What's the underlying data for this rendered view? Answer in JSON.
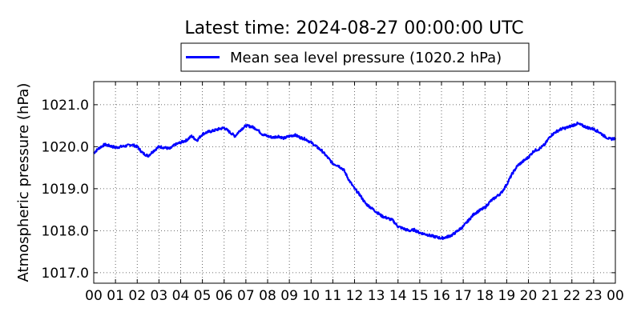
{
  "chart_data": {
    "type": "line",
    "title": "Latest time: 2024-08-27 00:00:00 UTC",
    "ylabel": "Atmospheric pressure (hPa)",
    "xlabel": "",
    "x_tick_labels": [
      "00",
      "01",
      "02",
      "03",
      "04",
      "05",
      "06",
      "07",
      "08",
      "09",
      "10",
      "11",
      "12",
      "13",
      "14",
      "15",
      "16",
      "17",
      "18",
      "19",
      "20",
      "21",
      "22",
      "23",
      "00"
    ],
    "y_tick_labels": [
      "1017.0",
      "1018.0",
      "1019.0",
      "1020.0",
      "1021.0"
    ],
    "y_ticks": [
      1017.0,
      1018.0,
      1019.0,
      1020.0,
      1021.0
    ],
    "xlim": [
      0,
      24
    ],
    "ylim": [
      1016.75,
      1021.55
    ],
    "grid": true,
    "legend_position": "top-center",
    "series": [
      {
        "name": "Mean sea level pressure (1020.2 hPa)",
        "color": "#0000ff",
        "x": [
          0.0,
          0.25,
          0.5,
          0.75,
          1.0,
          1.25,
          1.5,
          1.75,
          2.0,
          2.25,
          2.5,
          2.75,
          3.0,
          3.25,
          3.5,
          3.75,
          4.0,
          4.25,
          4.5,
          4.75,
          5.0,
          5.25,
          5.5,
          5.75,
          6.0,
          6.25,
          6.5,
          6.75,
          7.0,
          7.25,
          7.5,
          7.75,
          8.0,
          8.25,
          8.5,
          8.75,
          9.0,
          9.25,
          9.5,
          9.75,
          10.0,
          10.25,
          10.5,
          10.75,
          11.0,
          11.25,
          11.5,
          11.75,
          12.0,
          12.25,
          12.5,
          12.75,
          13.0,
          13.25,
          13.5,
          13.75,
          14.0,
          14.25,
          14.5,
          14.75,
          15.0,
          15.25,
          15.5,
          15.75,
          16.0,
          16.25,
          16.5,
          16.75,
          17.0,
          17.25,
          17.5,
          17.75,
          18.0,
          18.25,
          18.5,
          18.75,
          19.0,
          19.25,
          19.5,
          19.75,
          20.0,
          20.25,
          20.5,
          20.75,
          21.0,
          21.25,
          21.5,
          21.75,
          22.0,
          22.25,
          22.5,
          22.75,
          23.0,
          23.25,
          23.5,
          23.75,
          24.0
        ],
        "values": [
          1019.85,
          1019.97,
          1020.05,
          1020.02,
          1019.98,
          1020.0,
          1020.02,
          1020.05,
          1020.0,
          1019.85,
          1019.78,
          1019.9,
          1020.0,
          1019.98,
          1019.95,
          1020.05,
          1020.1,
          1020.15,
          1020.25,
          1020.15,
          1020.3,
          1020.35,
          1020.38,
          1020.42,
          1020.45,
          1020.35,
          1020.25,
          1020.4,
          1020.5,
          1020.48,
          1020.42,
          1020.3,
          1020.25,
          1020.22,
          1020.25,
          1020.2,
          1020.25,
          1020.28,
          1020.22,
          1020.18,
          1020.1,
          1020.0,
          1019.9,
          1019.75,
          1019.6,
          1019.55,
          1019.45,
          1019.2,
          1019.0,
          1018.85,
          1018.65,
          1018.55,
          1018.45,
          1018.35,
          1018.3,
          1018.25,
          1018.1,
          1018.05,
          1018.0,
          1018.02,
          1017.95,
          1017.92,
          1017.88,
          1017.85,
          1017.82,
          1017.85,
          1017.9,
          1018.0,
          1018.1,
          1018.25,
          1018.4,
          1018.48,
          1018.55,
          1018.7,
          1018.8,
          1018.9,
          1019.1,
          1019.35,
          1019.55,
          1019.65,
          1019.75,
          1019.9,
          1019.95,
          1020.05,
          1020.25,
          1020.35,
          1020.42,
          1020.45,
          1020.5,
          1020.55,
          1020.5,
          1020.45,
          1020.42,
          1020.35,
          1020.25,
          1020.18,
          1020.2
        ]
      }
    ]
  }
}
